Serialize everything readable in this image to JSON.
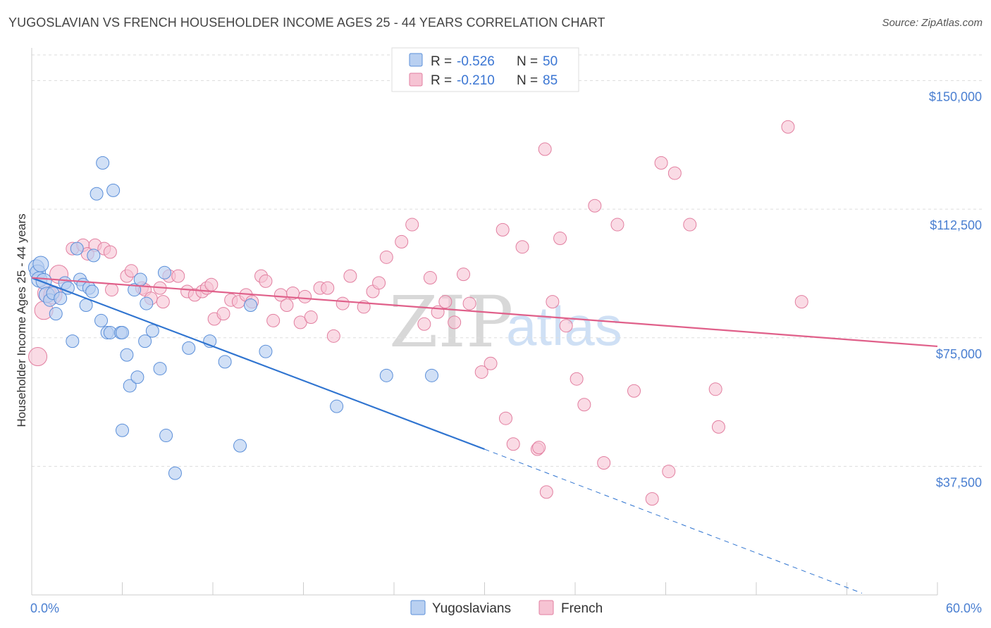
{
  "title": "YUGOSLAVIAN VS FRENCH HOUSEHOLDER INCOME AGES 25 - 44 YEARS CORRELATION CHART",
  "source": "Source: ZipAtlas.com",
  "watermark": {
    "zip": "ZIP",
    "atlas": "atlas"
  },
  "colors": {
    "yugoslavians": "#5b8fd9",
    "yugoslavians_fill": "#b9d0f1",
    "yugoslavians_line": "#2f74d0",
    "french": "#e27fa0",
    "french_fill": "#f6c3d3",
    "french_line": "#e0608a",
    "tick_label": "#4a7fd1",
    "grid": "#dddddd"
  },
  "legend_top": {
    "r_label": "R =",
    "n_label": "N =",
    "rows": [
      {
        "series": "Yugoslavians",
        "r": "-0.526",
        "n": "50"
      },
      {
        "series": "French",
        "r": "-0.210",
        "n": "85"
      }
    ]
  },
  "legend_bottom": [
    "Yugoslavians",
    "French"
  ],
  "chart_data": {
    "type": "scatter",
    "title": "YUGOSLAVIAN VS FRENCH HOUSEHOLDER INCOME AGES 25 - 44 YEARS CORRELATION CHART",
    "xlabel": "",
    "ylabel": "Householder Income Ages 25 - 44 years",
    "xlim": [
      0,
      60
    ],
    "ylim": [
      0,
      157500
    ],
    "x_tick_labels": [
      "0.0%",
      "60.0%"
    ],
    "y_ticks": [
      37500,
      75000,
      112500,
      150000
    ],
    "y_tick_labels": [
      "$37,500",
      "$75,000",
      "$112,500",
      "$150,000"
    ],
    "grid": "horizontal dashed",
    "legend_position": "top-center",
    "series": [
      {
        "name": "Yugoslavians",
        "r": -0.526,
        "n": 50,
        "trend": {
          "x0": 0,
          "y0": 92500,
          "x1": 30,
          "y1": 42500,
          "dashed_to_x": 55,
          "dashed_to_y": 500
        },
        "points": [
          [
            0.3,
            95500
          ],
          [
            0.4,
            94000
          ],
          [
            0.5,
            92000
          ],
          [
            0.6,
            96500
          ],
          [
            0.8,
            91500
          ],
          [
            1.0,
            87500
          ],
          [
            1.2,
            86000
          ],
          [
            1.4,
            88000
          ],
          [
            1.6,
            82000
          ],
          [
            1.9,
            86500
          ],
          [
            2.2,
            91000
          ],
          [
            2.4,
            89500
          ],
          [
            2.7,
            74000
          ],
          [
            3.0,
            101000
          ],
          [
            3.2,
            92000
          ],
          [
            3.4,
            90500
          ],
          [
            3.6,
            84500
          ],
          [
            3.8,
            89500
          ],
          [
            4.0,
            88500
          ],
          [
            4.1,
            99000
          ],
          [
            4.3,
            117000
          ],
          [
            4.6,
            80000
          ],
          [
            4.7,
            126000
          ],
          [
            5.0,
            76500
          ],
          [
            5.2,
            76500
          ],
          [
            5.4,
            118000
          ],
          [
            5.9,
            76500
          ],
          [
            6.0,
            48000
          ],
          [
            6.3,
            70000
          ],
          [
            6.5,
            61000
          ],
          [
            6.8,
            89000
          ],
          [
            7.0,
            63500
          ],
          [
            7.2,
            92000
          ],
          [
            7.5,
            74000
          ],
          [
            7.6,
            85000
          ],
          [
            8.0,
            77000
          ],
          [
            8.5,
            66000
          ],
          [
            8.8,
            94000
          ],
          [
            8.9,
            46500
          ],
          [
            9.5,
            35500
          ],
          [
            10.4,
            72000
          ],
          [
            11.8,
            74000
          ],
          [
            12.8,
            68000
          ],
          [
            13.8,
            43500
          ],
          [
            14.5,
            84500
          ],
          [
            15.5,
            71000
          ],
          [
            20.2,
            55000
          ],
          [
            23.5,
            64000
          ],
          [
            26.5,
            64000
          ],
          [
            6.0,
            76500
          ]
        ]
      },
      {
        "name": "French",
        "r": -0.21,
        "n": 85,
        "trend": {
          "x0": 0,
          "y0": 92500,
          "x1": 60,
          "y1": 72500
        },
        "points": [
          [
            0.4,
            69500
          ],
          [
            0.8,
            83000
          ],
          [
            1.0,
            88000
          ],
          [
            1.4,
            87500
          ],
          [
            1.8,
            93500
          ],
          [
            2.7,
            101000
          ],
          [
            3.4,
            102000
          ],
          [
            3.7,
            99500
          ],
          [
            4.2,
            102000
          ],
          [
            4.8,
            101000
          ],
          [
            5.2,
            100000
          ],
          [
            5.3,
            89000
          ],
          [
            6.3,
            93000
          ],
          [
            6.6,
            94500
          ],
          [
            7.3,
            89500
          ],
          [
            7.5,
            89000
          ],
          [
            7.9,
            86500
          ],
          [
            8.5,
            89500
          ],
          [
            8.7,
            85500
          ],
          [
            9.1,
            93000
          ],
          [
            9.7,
            93000
          ],
          [
            10.3,
            88500
          ],
          [
            10.8,
            87500
          ],
          [
            11.3,
            88500
          ],
          [
            11.6,
            89500
          ],
          [
            11.9,
            90500
          ],
          [
            12.1,
            80500
          ],
          [
            12.7,
            82000
          ],
          [
            13.2,
            86000
          ],
          [
            13.7,
            85500
          ],
          [
            14.2,
            87500
          ],
          [
            14.6,
            85500
          ],
          [
            15.2,
            93000
          ],
          [
            15.5,
            91500
          ],
          [
            16.0,
            80000
          ],
          [
            16.5,
            87500
          ],
          [
            16.9,
            84500
          ],
          [
            17.3,
            88000
          ],
          [
            17.8,
            79500
          ],
          [
            18.1,
            87000
          ],
          [
            18.5,
            81000
          ],
          [
            19.1,
            89500
          ],
          [
            19.6,
            89500
          ],
          [
            20.0,
            75500
          ],
          [
            20.6,
            85000
          ],
          [
            21.1,
            93000
          ],
          [
            22.0,
            84000
          ],
          [
            22.6,
            88500
          ],
          [
            23.0,
            91000
          ],
          [
            23.5,
            98500
          ],
          [
            24.5,
            103000
          ],
          [
            25.2,
            108000
          ],
          [
            26.0,
            79000
          ],
          [
            26.4,
            92500
          ],
          [
            26.9,
            82500
          ],
          [
            27.4,
            85500
          ],
          [
            28.0,
            79500
          ],
          [
            28.6,
            93500
          ],
          [
            29.0,
            85000
          ],
          [
            29.8,
            65000
          ],
          [
            30.4,
            67500
          ],
          [
            31.2,
            106500
          ],
          [
            31.4,
            51500
          ],
          [
            31.9,
            44000
          ],
          [
            32.5,
            101500
          ],
          [
            33.5,
            42500
          ],
          [
            33.6,
            43000
          ],
          [
            34.0,
            130000
          ],
          [
            34.1,
            30000
          ],
          [
            34.5,
            85500
          ],
          [
            35.0,
            104000
          ],
          [
            35.4,
            78500
          ],
          [
            36.1,
            63000
          ],
          [
            36.6,
            55500
          ],
          [
            37.3,
            113500
          ],
          [
            37.9,
            38500
          ],
          [
            38.8,
            108000
          ],
          [
            39.9,
            59500
          ],
          [
            41.1,
            28000
          ],
          [
            41.7,
            126000
          ],
          [
            42.2,
            36000
          ],
          [
            42.6,
            123000
          ],
          [
            43.6,
            108000
          ],
          [
            45.3,
            60000
          ],
          [
            45.5,
            49000
          ]
        ],
        "extra_points": [
          [
            50.1,
            136500
          ],
          [
            51.0,
            85500
          ]
        ]
      }
    ]
  }
}
